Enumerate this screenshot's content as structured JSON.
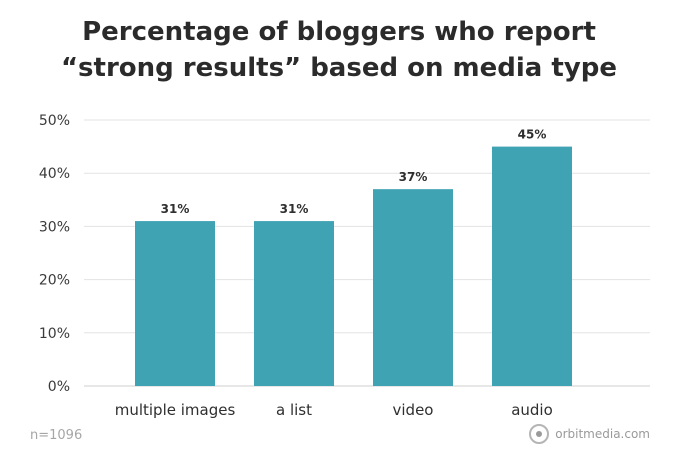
{
  "chart_data": {
    "type": "bar",
    "title_lines": [
      "Percentage of bloggers who report",
      "“strong results” based on media type"
    ],
    "categories": [
      "multiple images",
      "a list",
      "video",
      "audio"
    ],
    "values": [
      31,
      31,
      37,
      45
    ],
    "data_labels": [
      "31%",
      "31%",
      "37%",
      "45%"
    ],
    "ylim": [
      0,
      50
    ],
    "yticks": [
      0,
      10,
      20,
      30,
      40,
      50
    ],
    "ytick_labels": [
      "0%",
      "10%",
      "20%",
      "30%",
      "40%",
      "50%"
    ],
    "grid": true,
    "bar_color": "#3fa3b3"
  },
  "footnote": "n=1096",
  "brand": "orbitmedia.com"
}
